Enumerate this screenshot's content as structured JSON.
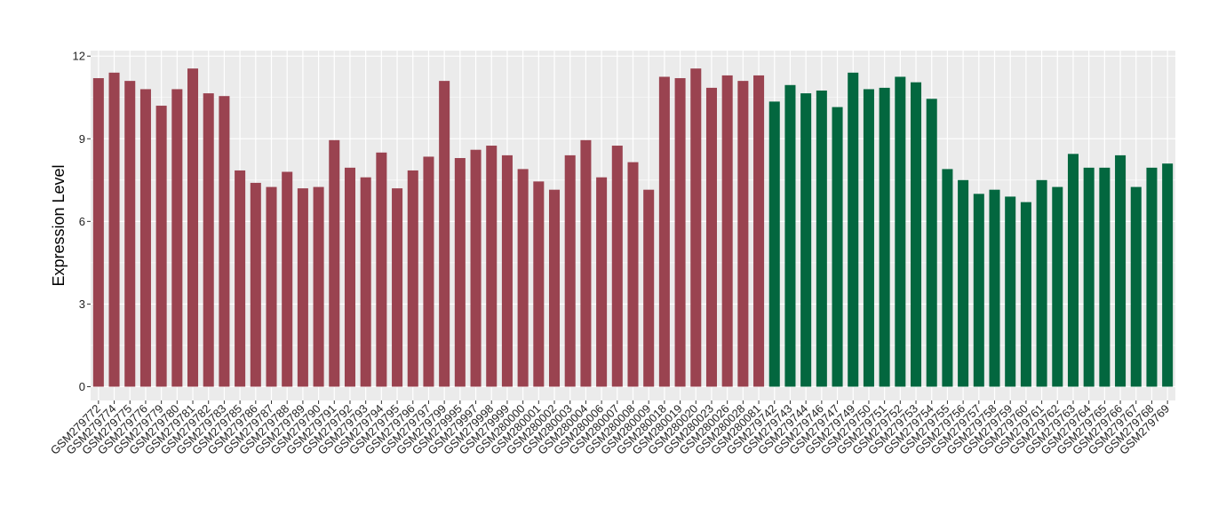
{
  "chart_data": {
    "type": "bar",
    "title": "",
    "xlabel": "",
    "ylabel": "Expression Level",
    "ylim": [
      -0.5,
      12.2
    ],
    "yticks": [
      0,
      3,
      6,
      9,
      12
    ],
    "grid": true,
    "legend": "none",
    "colors": {
      "group1": "#9A4350",
      "group2": "#03673F",
      "panel": "#EBEBEB",
      "grid": "#FFFFFF"
    },
    "categories": [
      "GSM279772",
      "GSM279774",
      "GSM279775",
      "GSM279776",
      "GSM279779",
      "GSM279780",
      "GSM279781",
      "GSM279782",
      "GSM279783",
      "GSM279785",
      "GSM279786",
      "GSM279787",
      "GSM279788",
      "GSM279789",
      "GSM279790",
      "GSM279791",
      "GSM279792",
      "GSM279793",
      "GSM279794",
      "GSM279795",
      "GSM279796",
      "GSM279797",
      "GSM279799",
      "GSM279995",
      "GSM279997",
      "GSM279998",
      "GSM279999",
      "GSM280000",
      "GSM280001",
      "GSM280002",
      "GSM280003",
      "GSM280004",
      "GSM280006",
      "GSM280007",
      "GSM280008",
      "GSM280009",
      "GSM280018",
      "GSM280019",
      "GSM280020",
      "GSM280023",
      "GSM280026",
      "GSM280028",
      "GSM280081",
      "GSM279742",
      "GSM279743",
      "GSM279744",
      "GSM279746",
      "GSM279747",
      "GSM279749",
      "GSM279750",
      "GSM279751",
      "GSM279752",
      "GSM279753",
      "GSM279754",
      "GSM279755",
      "GSM279756",
      "GSM279757",
      "GSM279758",
      "GSM279759",
      "GSM279760",
      "GSM279761",
      "GSM279762",
      "GSM279763",
      "GSM279764",
      "GSM279765",
      "GSM279766",
      "GSM279767",
      "GSM279768",
      "GSM279769"
    ],
    "values": [
      11.2,
      11.4,
      11.1,
      10.8,
      10.2,
      10.8,
      11.55,
      10.65,
      10.55,
      7.85,
      7.4,
      7.25,
      7.8,
      7.2,
      7.25,
      8.95,
      7.95,
      7.6,
      8.5,
      7.2,
      7.85,
      8.35,
      11.1,
      8.3,
      8.6,
      8.75,
      8.4,
      7.9,
      7.45,
      7.15,
      8.4,
      8.95,
      7.6,
      8.75,
      8.15,
      7.15,
      11.25,
      11.2,
      11.55,
      10.85,
      11.3,
      11.1,
      11.3,
      10.35,
      10.95,
      10.65,
      10.75,
      10.15,
      11.4,
      10.8,
      10.85,
      11.25,
      11.05,
      10.45,
      7.9,
      7.5,
      7.0,
      7.15,
      6.9,
      6.7,
      7.5,
      7.25,
      8.45,
      7.95,
      7.95,
      8.4,
      7.25,
      7.95,
      8.1
    ],
    "groups": [
      1,
      1,
      1,
      1,
      1,
      1,
      1,
      1,
      1,
      1,
      1,
      1,
      1,
      1,
      1,
      1,
      1,
      1,
      1,
      1,
      1,
      1,
      1,
      1,
      1,
      1,
      1,
      1,
      1,
      1,
      1,
      1,
      1,
      1,
      1,
      1,
      1,
      1,
      1,
      1,
      1,
      1,
      1,
      2,
      2,
      2,
      2,
      2,
      2,
      2,
      2,
      2,
      2,
      2,
      2,
      2,
      2,
      2,
      2,
      2,
      2,
      2,
      2,
      2,
      2,
      2,
      2,
      2,
      2
    ]
  }
}
